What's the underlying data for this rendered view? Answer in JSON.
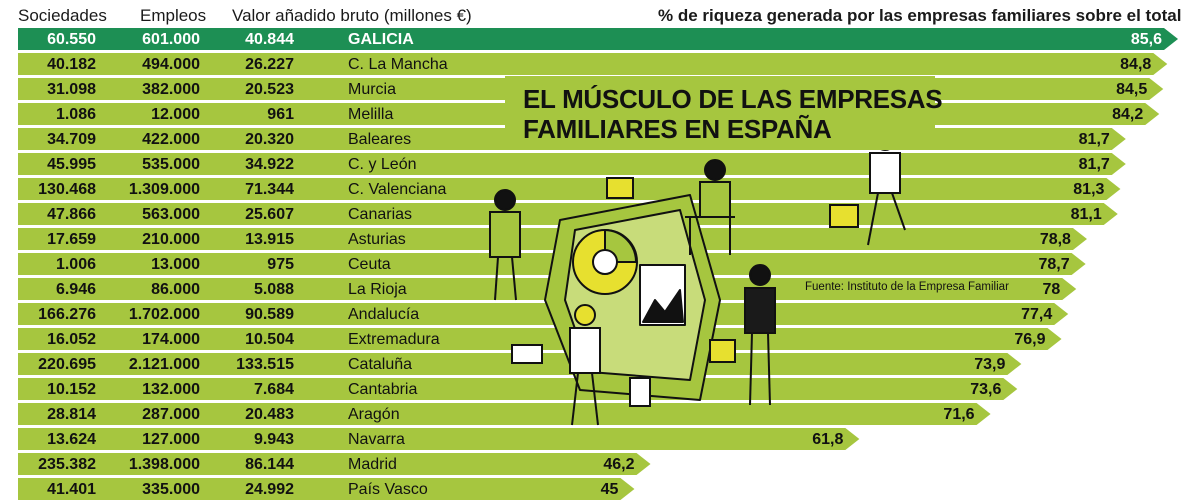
{
  "headers": {
    "sociedades": "Sociedades",
    "empleos": "Empleos",
    "valor": "Valor añadido bruto (millones €)",
    "percent": "% de riqueza generada por las empresas familiares sobre el total"
  },
  "title": {
    "line1": "EL MÚSCULO DE LAS EMPRESAS",
    "line2": "FAMILIARES EN ESPAÑA"
  },
  "source": "Fuente: Instituto de la Empresa Familiar",
  "colors": {
    "highlight": "#1d8f54",
    "bar": "#a6c63f",
    "ink": "#111111"
  },
  "chart_data": {
    "type": "bar",
    "orientation": "horizontal",
    "value_label": "% de riqueza generada por las empresas familiares sobre el total",
    "categories": [
      "GALICIA",
      "C. La Mancha",
      "Murcia",
      "Melilla",
      "Baleares",
      "C. y León",
      "C. Valenciana",
      "Canarias",
      "Asturias",
      "Ceuta",
      "La Rioja",
      "Andalucía",
      "Extremadura",
      "Cataluña",
      "Cantabria",
      "Aragón",
      "Navarra",
      "Madrid",
      "País Vasco"
    ],
    "values": [
      85.6,
      84.8,
      84.5,
      84.2,
      81.7,
      81.7,
      81.3,
      81.1,
      78.8,
      78.7,
      78,
      77.4,
      76.9,
      73.9,
      73.6,
      71.6,
      61.8,
      46.2,
      45
    ],
    "highlight_category": "GALICIA",
    "rows": [
      {
        "sociedades": "60.550",
        "empleos": "601.000",
        "valor": "40.844",
        "region": "GALICIA",
        "pct": "85,6"
      },
      {
        "sociedades": "40.182",
        "empleos": "494.000",
        "valor": "26.227",
        "region": "C. La Mancha",
        "pct": "84,8"
      },
      {
        "sociedades": "31.098",
        "empleos": "382.000",
        "valor": "20.523",
        "region": "Murcia",
        "pct": "84,5"
      },
      {
        "sociedades": "1.086",
        "empleos": "12.000",
        "valor": "961",
        "region": "Melilla",
        "pct": "84,2"
      },
      {
        "sociedades": "34.709",
        "empleos": "422.000",
        "valor": "20.320",
        "region": "Baleares",
        "pct": "81,7"
      },
      {
        "sociedades": "45.995",
        "empleos": "535.000",
        "valor": "34.922",
        "region": "C. y León",
        "pct": "81,7"
      },
      {
        "sociedades": "130.468",
        "empleos": "1.309.000",
        "valor": "71.344",
        "region": "C. Valenciana",
        "pct": "81,3"
      },
      {
        "sociedades": "47.866",
        "empleos": "563.000",
        "valor": "25.607",
        "region": "Canarias",
        "pct": "81,1"
      },
      {
        "sociedades": "17.659",
        "empleos": "210.000",
        "valor": "13.915",
        "region": "Asturias",
        "pct": "78,8"
      },
      {
        "sociedades": "1.006",
        "empleos": "13.000",
        "valor": "975",
        "region": "Ceuta",
        "pct": "78,7"
      },
      {
        "sociedades": "6.946",
        "empleos": "86.000",
        "valor": "5.088",
        "region": "La Rioja",
        "pct": "78"
      },
      {
        "sociedades": "166.276",
        "empleos": "1.702.000",
        "valor": "90.589",
        "region": "Andalucía",
        "pct": "77,4"
      },
      {
        "sociedades": "16.052",
        "empleos": "174.000",
        "valor": "10.504",
        "region": "Extremadura",
        "pct": "76,9"
      },
      {
        "sociedades": "220.695",
        "empleos": "2.121.000",
        "valor": "133.515",
        "region": "Cataluña",
        "pct": "73,9"
      },
      {
        "sociedades": "10.152",
        "empleos": "132.000",
        "valor": "7.684",
        "region": "Cantabria",
        "pct": "73,6"
      },
      {
        "sociedades": "28.814",
        "empleos": "287.000",
        "valor": "20.483",
        "region": "Aragón",
        "pct": "71,6"
      },
      {
        "sociedades": "13.624",
        "empleos": "127.000",
        "valor": "9.943",
        "region": "Navarra",
        "pct": "61,8"
      },
      {
        "sociedades": "235.382",
        "empleos": "1.398.000",
        "valor": "86.144",
        "region": "Madrid",
        "pct": "46,2"
      },
      {
        "sociedades": "41.401",
        "empleos": "335.000",
        "valor": "24.992",
        "region": "País Vasco",
        "pct": "45"
      }
    ]
  }
}
